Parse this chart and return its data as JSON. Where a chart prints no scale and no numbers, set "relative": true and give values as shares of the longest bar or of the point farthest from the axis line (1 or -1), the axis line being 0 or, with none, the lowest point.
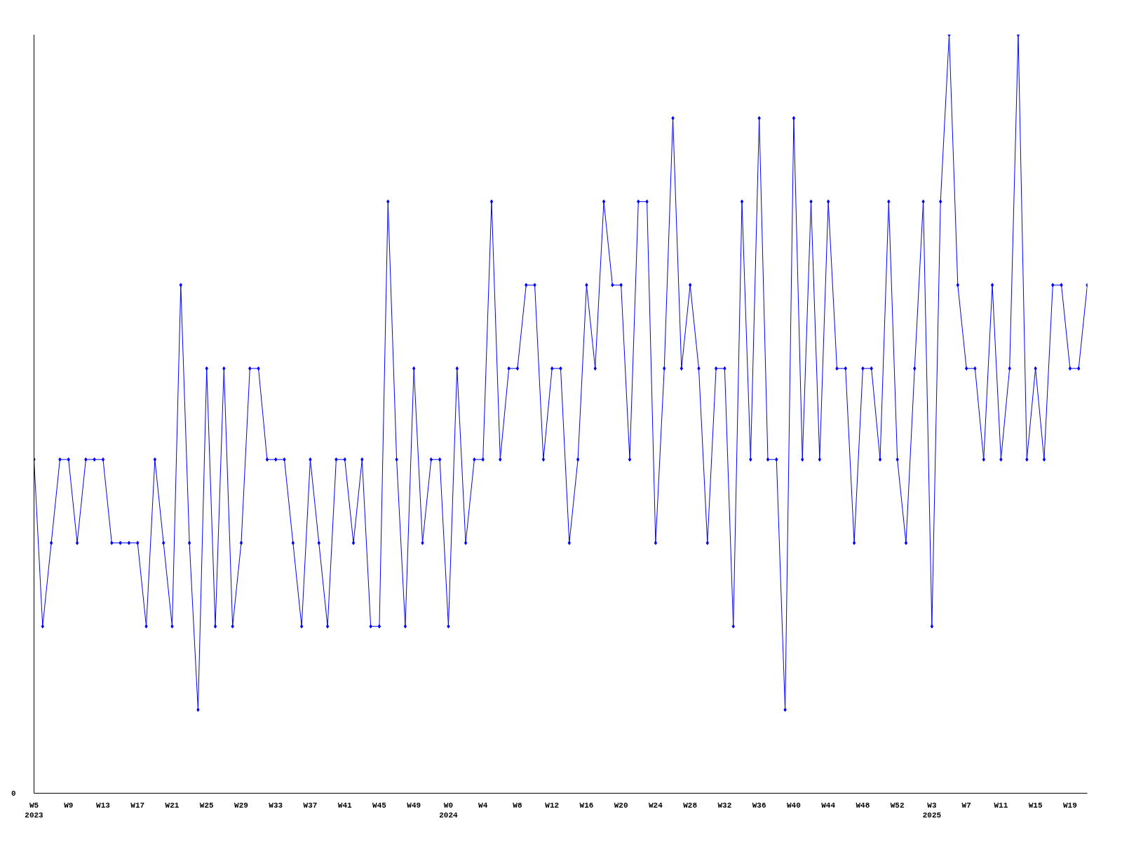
{
  "chart_data": {
    "type": "line",
    "relative": true,
    "color": "#0000ff",
    "marker": "diamond",
    "line_style": "solid",
    "grid": false,
    "annotations": [
      "0"
    ],
    "categories": [
      "W5\n2023",
      null,
      null,
      null,
      "W9",
      null,
      null,
      null,
      "W13",
      null,
      null,
      null,
      "W17",
      null,
      null,
      null,
      "W21",
      null,
      null,
      null,
      "W25",
      null,
      null,
      null,
      "W29",
      null,
      null,
      null,
      "W33",
      null,
      null,
      null,
      "W37",
      null,
      null,
      null,
      "W41",
      null,
      null,
      null,
      "W45",
      null,
      null,
      null,
      "W49",
      null,
      null,
      null,
      "W0\n2024",
      null,
      null,
      null,
      "W4",
      null,
      null,
      null,
      "W8",
      null,
      null,
      null,
      "W12",
      null,
      null,
      null,
      "W16",
      null,
      null,
      null,
      "W20",
      null,
      null,
      null,
      "W24",
      null,
      null,
      null,
      "W28",
      null,
      null,
      null,
      "W32",
      null,
      null,
      null,
      "W36",
      null,
      null,
      null,
      "W40",
      null,
      null,
      null,
      "W44",
      null,
      null,
      null,
      "W48",
      null,
      null,
      null,
      "W52",
      null,
      null,
      null,
      "W3\n2025",
      null,
      null,
      null,
      "W7",
      null,
      null,
      null,
      "W11",
      null,
      null,
      null,
      "W15",
      null,
      null,
      null,
      "W19",
      null,
      null
    ],
    "values": [
      0.44,
      0.22,
      0.33,
      0.44,
      0.44,
      0.33,
      0.44,
      0.44,
      0.44,
      0.33,
      0.33,
      0.33,
      0.33,
      0.22,
      0.44,
      0.33,
      0.22,
      0.67,
      0.33,
      0.11,
      0.56,
      0.22,
      0.56,
      0.22,
      0.33,
      0.56,
      0.56,
      0.44,
      0.44,
      0.44,
      0.33,
      0.22,
      0.44,
      0.33,
      0.22,
      0.44,
      0.44,
      0.33,
      0.44,
      0.22,
      0.22,
      0.78,
      0.44,
      0.22,
      0.56,
      0.33,
      0.44,
      0.44,
      0.22,
      0.56,
      0.33,
      0.44,
      0.44,
      0.78,
      0.44,
      0.56,
      0.56,
      0.67,
      0.67,
      0.44,
      0.56,
      0.56,
      0.33,
      0.44,
      0.67,
      0.56,
      0.78,
      0.67,
      0.67,
      0.44,
      0.78,
      0.78,
      0.33,
      0.56,
      0.89,
      0.56,
      0.67,
      0.56,
      0.33,
      0.56,
      0.56,
      0.22,
      0.78,
      0.44,
      0.89,
      0.44,
      0.44,
      0.11,
      0.89,
      0.44,
      0.78,
      0.44,
      0.78,
      0.56,
      0.56,
      0.33,
      0.56,
      0.56,
      0.44,
      0.78,
      0.44,
      0.33,
      0.56,
      0.78,
      0.22,
      0.78,
      1,
      0.67,
      0.56,
      0.56,
      0.44,
      0.67,
      0.44,
      0.56,
      1,
      0.44,
      0.56,
      0.44,
      0.67,
      0.67,
      0.56,
      0.56,
      0.67
    ]
  }
}
